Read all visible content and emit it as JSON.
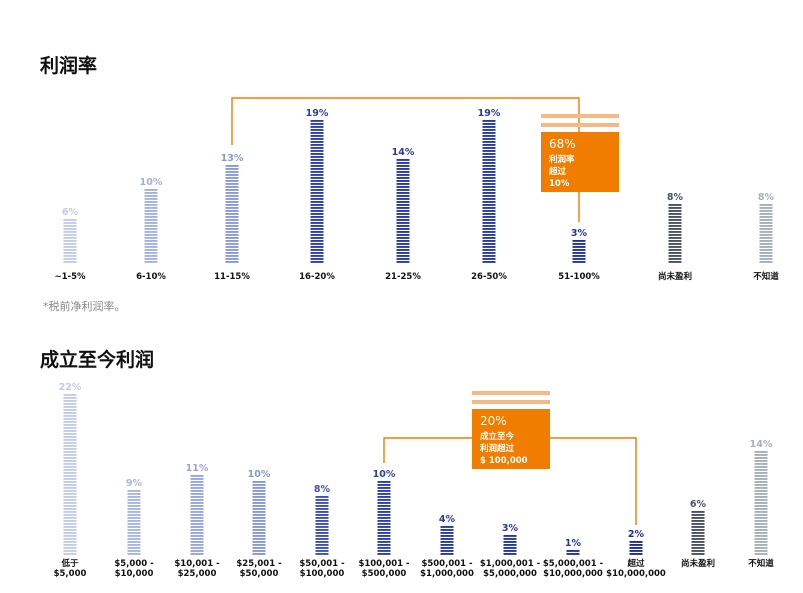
{
  "colors": {
    "scale": [
      "#b7c3e6",
      "#aab6e3",
      "#8e9ed9",
      "#3b4db3",
      "#2c3d9e",
      "#24349b",
      "#1e2f8f"
    ],
    "not_yet": "#4b5263",
    "unknown": "#a6afbb",
    "accent": "#f07c00",
    "accent_light": "#f6b986",
    "text": "#111111"
  },
  "chart_data": [
    {
      "type": "bar",
      "title": "利润率",
      "footnote": "*税前净利润率。",
      "categories": [
        "~1-5%",
        "6-10%",
        "11-15%",
        "16-20%",
        "21-25%",
        "26-50%",
        "51-100%",
        "尚未盈利",
        "不知道"
      ],
      "values": [
        6,
        10,
        13,
        19,
        14,
        19,
        3,
        8,
        8
      ],
      "value_labels": [
        "6%",
        "10%",
        "13%",
        "19%",
        "14%",
        "19%",
        "3%",
        "8%",
        "8%"
      ],
      "bar_colors": [
        "#c2cbea",
        "#a5b2e0",
        "#8a9ad7",
        "#2d3fa6",
        "#2a3a9e",
        "#2a3ba2",
        "#24349b",
        "#4b5263",
        "#a6afbb"
      ],
      "callout": {
        "value": "68%",
        "lines": [
          "利润率",
          "超过",
          "10%"
        ],
        "spans_categories": [
          "11-15%",
          "51-100%"
        ]
      }
    },
    {
      "type": "bar",
      "title": "成立至今利润",
      "categories": [
        [
          "低于",
          "$5,000"
        ],
        [
          "$5,000 -",
          "$10,000"
        ],
        [
          "$10,001 -",
          "$25,000"
        ],
        [
          "$25,001 -",
          "$50,000"
        ],
        [
          "$50,001 -",
          "$100,000"
        ],
        [
          "$100,001 -",
          "$500,000"
        ],
        [
          "$500,001 -",
          "$1,000,000"
        ],
        [
          "$1,000,001 -",
          "$5,000,000"
        ],
        [
          "$5,000,001 -",
          "$10,000,000"
        ],
        [
          "超过",
          "$10,000,000"
        ],
        [
          "尚未盈利",
          ""
        ],
        [
          "不知道",
          ""
        ]
      ],
      "values": [
        22,
        9,
        11,
        10,
        8,
        10,
        4,
        3,
        1,
        2,
        6,
        14
      ],
      "value_labels": [
        "22%",
        "9%",
        "11%",
        "10%",
        "8%",
        "10%",
        "4%",
        "3%",
        "1%",
        "2%",
        "6%",
        "14%"
      ],
      "bar_colors": [
        "#c2cbea",
        "#a9b5e2",
        "#98a6dc",
        "#8897d6",
        "#3f51b0",
        "#2f41a5",
        "#2a3ba0",
        "#27389d",
        "#24349b",
        "#1f2e8c",
        "#4b5263",
        "#a6afbb"
      ],
      "callout": {
        "value": "20%",
        "lines": [
          "成立至今",
          "利润超过",
          "$ 100,000"
        ],
        "spans_categories": [
          "$100,001 - $500,000",
          "超过 $10,000,000"
        ]
      }
    }
  ]
}
